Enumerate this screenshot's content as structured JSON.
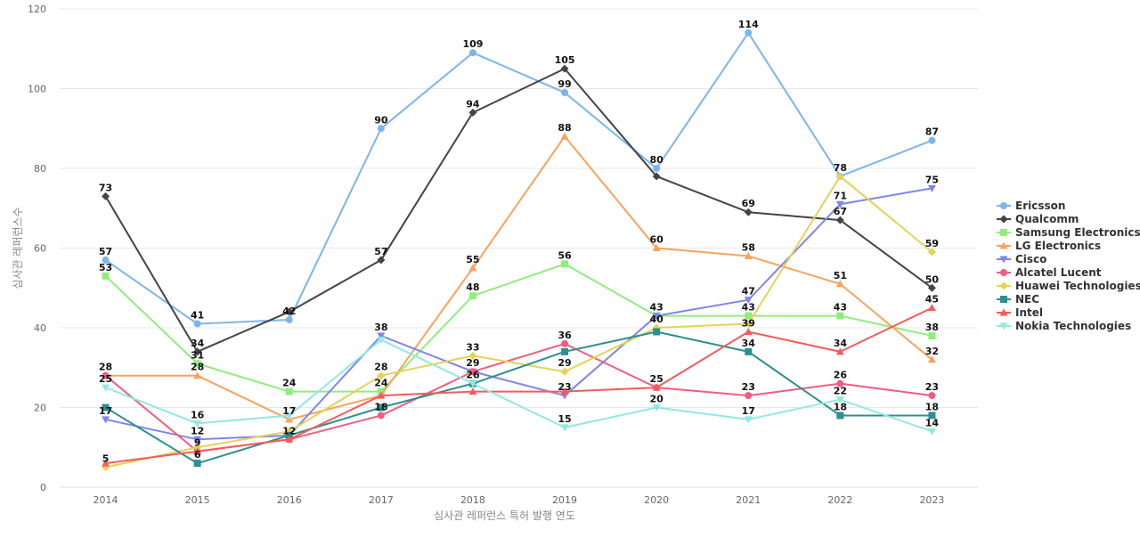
{
  "chart_data": {
    "type": "line",
    "x": [
      "2014",
      "2015",
      "2016",
      "2017",
      "2018",
      "2019",
      "2020",
      "2021",
      "2022",
      "2023"
    ],
    "xlabel": "심사관 레퍼런스 특허 발행 연도",
    "ylabel": "심사관 레퍼런스수",
    "ylim": [
      0,
      120
    ],
    "yticks": [
      0,
      20,
      40,
      60,
      80,
      100,
      120
    ],
    "grid": true,
    "legend_position": "right",
    "series": [
      {
        "name": "Ericsson",
        "color": "#7cb5ec",
        "marker": "circle",
        "values": [
          57,
          41,
          42,
          90,
          109,
          99,
          80,
          114,
          78,
          87
        ]
      },
      {
        "name": "Qualcomm",
        "color": "#434348",
        "marker": "diamond",
        "values": [
          73,
          34,
          44,
          57,
          94,
          105,
          78,
          69,
          67,
          50
        ]
      },
      {
        "name": "Samsung Electronics",
        "color": "#90ed7d",
        "marker": "square",
        "values": [
          53,
          31,
          24,
          24,
          48,
          56,
          43,
          43,
          43,
          38
        ]
      },
      {
        "name": "LG Electronics",
        "color": "#f7a35c",
        "marker": "triangle",
        "values": [
          28,
          28,
          17,
          23,
          55,
          88,
          60,
          58,
          51,
          32
        ]
      },
      {
        "name": "Cisco",
        "color": "#8085e9",
        "marker": "triangle-down",
        "values": [
          17,
          12,
          13,
          38,
          29,
          23,
          43,
          47,
          71,
          75
        ]
      },
      {
        "name": "Alcatel Lucent",
        "color": "#f15c80",
        "marker": "circle",
        "values": [
          28,
          9,
          12,
          18,
          29,
          36,
          25,
          23,
          26,
          23
        ]
      },
      {
        "name": "Huawei Technologies",
        "color": "#e4d354",
        "marker": "diamond",
        "values": [
          5,
          10,
          14,
          28,
          33,
          29,
          40,
          41,
          78,
          59
        ]
      },
      {
        "name": "NEC",
        "color": "#2b908f",
        "marker": "square",
        "values": [
          20,
          6,
          13,
          20,
          26,
          34,
          39,
          34,
          18,
          18
        ]
      },
      {
        "name": "Intel",
        "color": "#f45b5b",
        "marker": "triangle",
        "values": [
          6,
          9,
          12,
          23,
          24,
          24,
          25,
          39,
          34,
          45
        ]
      },
      {
        "name": "Nokia Technologies",
        "color": "#91e8e1",
        "marker": "triangle-down",
        "values": [
          25,
          16,
          18,
          37,
          26,
          15,
          20,
          17,
          22,
          14
        ]
      }
    ],
    "data_labels": [
      {
        "x": "2014",
        "text": "73",
        "value": 73
      },
      {
        "x": "2014",
        "text": "57",
        "value": 57
      },
      {
        "x": "2014",
        "text": "53",
        "value": 53
      },
      {
        "x": "2014",
        "text": "28",
        "value": 28
      },
      {
        "x": "2014",
        "text": "25",
        "value": 25
      },
      {
        "x": "2014",
        "text": "17",
        "value": 17
      },
      {
        "x": "2014",
        "text": "5",
        "value": 5
      },
      {
        "x": "2015",
        "text": "41",
        "value": 41
      },
      {
        "x": "2015",
        "text": "34",
        "value": 34
      },
      {
        "x": "2015",
        "text": "31",
        "value": 31
      },
      {
        "x": "2015",
        "text": "28",
        "value": 28
      },
      {
        "x": "2015",
        "text": "16",
        "value": 16
      },
      {
        "x": "2015",
        "text": "12",
        "value": 12
      },
      {
        "x": "2015",
        "text": "9",
        "value": 9
      },
      {
        "x": "2015",
        "text": "6",
        "value": 6
      },
      {
        "x": "2016",
        "text": "42",
        "value": 42
      },
      {
        "x": "2016",
        "text": "24",
        "value": 24
      },
      {
        "x": "2016",
        "text": "17",
        "value": 17
      },
      {
        "x": "2016",
        "text": "12",
        "value": 12
      },
      {
        "x": "2017",
        "text": "90",
        "value": 90
      },
      {
        "x": "2017",
        "text": "57",
        "value": 57
      },
      {
        "x": "2017",
        "text": "38",
        "value": 38
      },
      {
        "x": "2017",
        "text": "28",
        "value": 28
      },
      {
        "x": "2017",
        "text": "24",
        "value": 24
      },
      {
        "x": "2017",
        "text": "18",
        "value": 18
      },
      {
        "x": "2018",
        "text": "109",
        "value": 109
      },
      {
        "x": "2018",
        "text": "94",
        "value": 94
      },
      {
        "x": "2018",
        "text": "55",
        "value": 55
      },
      {
        "x": "2018",
        "text": "48",
        "value": 48
      },
      {
        "x": "2018",
        "text": "33",
        "value": 33
      },
      {
        "x": "2018",
        "text": "29",
        "value": 29
      },
      {
        "x": "2018",
        "text": "26",
        "value": 26
      },
      {
        "x": "2019",
        "text": "105",
        "value": 105
      },
      {
        "x": "2019",
        "text": "99",
        "value": 99
      },
      {
        "x": "2019",
        "text": "88",
        "value": 88
      },
      {
        "x": "2019",
        "text": "56",
        "value": 56
      },
      {
        "x": "2019",
        "text": "36",
        "value": 36
      },
      {
        "x": "2019",
        "text": "29",
        "value": 29
      },
      {
        "x": "2019",
        "text": "23",
        "value": 23
      },
      {
        "x": "2019",
        "text": "15",
        "value": 15
      },
      {
        "x": "2020",
        "text": "80",
        "value": 80
      },
      {
        "x": "2020",
        "text": "60",
        "value": 60
      },
      {
        "x": "2020",
        "text": "43",
        "value": 43
      },
      {
        "x": "2020",
        "text": "40",
        "value": 40
      },
      {
        "x": "2020",
        "text": "25",
        "value": 25
      },
      {
        "x": "2020",
        "text": "20",
        "value": 20
      },
      {
        "x": "2021",
        "text": "114",
        "value": 114
      },
      {
        "x": "2021",
        "text": "69",
        "value": 69
      },
      {
        "x": "2021",
        "text": "58",
        "value": 58
      },
      {
        "x": "2021",
        "text": "47",
        "value": 47
      },
      {
        "x": "2021",
        "text": "43",
        "value": 43
      },
      {
        "x": "2021",
        "text": "39",
        "value": 39
      },
      {
        "x": "2021",
        "text": "34",
        "value": 34
      },
      {
        "x": "2021",
        "text": "23",
        "value": 23
      },
      {
        "x": "2021",
        "text": "17",
        "value": 17
      },
      {
        "x": "2022",
        "text": "78",
        "value": 78
      },
      {
        "x": "2022",
        "text": "71",
        "value": 71
      },
      {
        "x": "2022",
        "text": "67",
        "value": 67
      },
      {
        "x": "2022",
        "text": "51",
        "value": 51
      },
      {
        "x": "2022",
        "text": "43",
        "value": 43
      },
      {
        "x": "2022",
        "text": "34",
        "value": 34
      },
      {
        "x": "2022",
        "text": "26",
        "value": 26
      },
      {
        "x": "2022",
        "text": "22",
        "value": 22
      },
      {
        "x": "2022",
        "text": "18",
        "value": 18
      },
      {
        "x": "2023",
        "text": "87",
        "value": 87
      },
      {
        "x": "2023",
        "text": "75",
        "value": 75
      },
      {
        "x": "2023",
        "text": "59",
        "value": 59
      },
      {
        "x": "2023",
        "text": "50",
        "value": 50
      },
      {
        "x": "2023",
        "text": "45",
        "value": 45
      },
      {
        "x": "2023",
        "text": "38",
        "value": 38
      },
      {
        "x": "2023",
        "text": "32",
        "value": 32
      },
      {
        "x": "2023",
        "text": "23",
        "value": 23
      },
      {
        "x": "2023",
        "text": "18",
        "value": 18
      },
      {
        "x": "2023",
        "text": "14",
        "value": 14
      }
    ]
  }
}
